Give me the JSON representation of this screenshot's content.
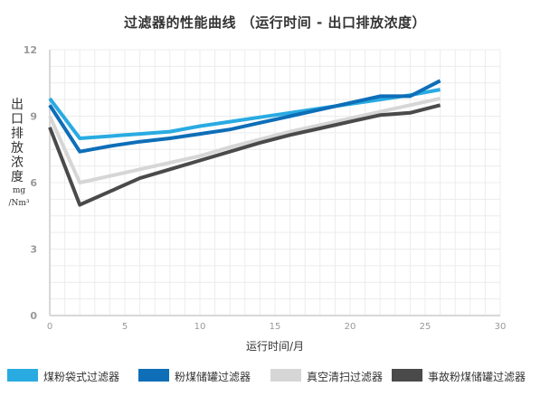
{
  "title": "过滤器的性能曲线 （运行时间 - 出口排放浓度）",
  "chart_data": {
    "type": "line",
    "title": "过滤器的性能曲线 （运行时间 - 出口排放浓度）",
    "xlabel": "运行时间/月",
    "ylabel": "出口排放浓度",
    "ylabel_unit": "mg/Nm³",
    "xlim": [
      0,
      30
    ],
    "ylim": [
      0,
      12
    ],
    "x_ticks": [
      "0",
      "5",
      "10",
      "15",
      "20",
      "25",
      "30"
    ],
    "y_ticks": [
      "0",
      "3",
      "6",
      "9",
      "12"
    ],
    "grid": true,
    "legend_position": "bottom",
    "series": [
      {
        "name": "煤粉袋式过滤器",
        "color": "#29abe2",
        "points": [
          [
            0,
            9.8
          ],
          [
            2,
            8.0
          ],
          [
            4,
            8.1
          ],
          [
            6,
            8.2
          ],
          [
            8,
            8.3
          ],
          [
            10,
            8.55
          ],
          [
            12,
            8.75
          ],
          [
            14,
            8.95
          ],
          [
            16,
            9.15
          ],
          [
            18,
            9.35
          ],
          [
            20,
            9.55
          ],
          [
            22,
            9.75
          ],
          [
            24,
            9.95
          ],
          [
            26,
            10.2
          ]
        ]
      },
      {
        "name": "粉煤储罐过滤器",
        "color": "#0e6eb8",
        "points": [
          [
            0,
            9.5
          ],
          [
            2,
            7.4
          ],
          [
            4,
            7.65
          ],
          [
            6,
            7.85
          ],
          [
            8,
            8.0
          ],
          [
            10,
            8.2
          ],
          [
            12,
            8.4
          ],
          [
            14,
            8.7
          ],
          [
            16,
            9.0
          ],
          [
            18,
            9.3
          ],
          [
            20,
            9.6
          ],
          [
            22,
            9.9
          ],
          [
            24,
            9.9
          ],
          [
            26,
            10.6
          ]
        ]
      },
      {
        "name": "真空清扫过滤器",
        "color": "#d6d6d6",
        "points": [
          [
            0,
            9.0
          ],
          [
            2,
            6.0
          ],
          [
            4,
            6.3
          ],
          [
            6,
            6.6
          ],
          [
            8,
            6.9
          ],
          [
            10,
            7.2
          ],
          [
            12,
            7.6
          ],
          [
            14,
            7.95
          ],
          [
            16,
            8.3
          ],
          [
            18,
            8.6
          ],
          [
            20,
            8.9
          ],
          [
            22,
            9.2
          ],
          [
            24,
            9.5
          ],
          [
            26,
            9.8
          ]
        ]
      },
      {
        "name": "事故粉煤储罐过滤器",
        "color": "#4a4a4a",
        "points": [
          [
            0,
            8.5
          ],
          [
            2,
            5.0
          ],
          [
            4,
            5.6
          ],
          [
            6,
            6.2
          ],
          [
            8,
            6.6
          ],
          [
            10,
            7.0
          ],
          [
            12,
            7.4
          ],
          [
            14,
            7.8
          ],
          [
            16,
            8.15
          ],
          [
            18,
            8.45
          ],
          [
            20,
            8.75
          ],
          [
            22,
            9.05
          ],
          [
            24,
            9.15
          ],
          [
            26,
            9.5
          ]
        ]
      }
    ]
  },
  "axis_color": "#cccccc",
  "grid_color": "#ececec",
  "tick_label_color": "#999999"
}
